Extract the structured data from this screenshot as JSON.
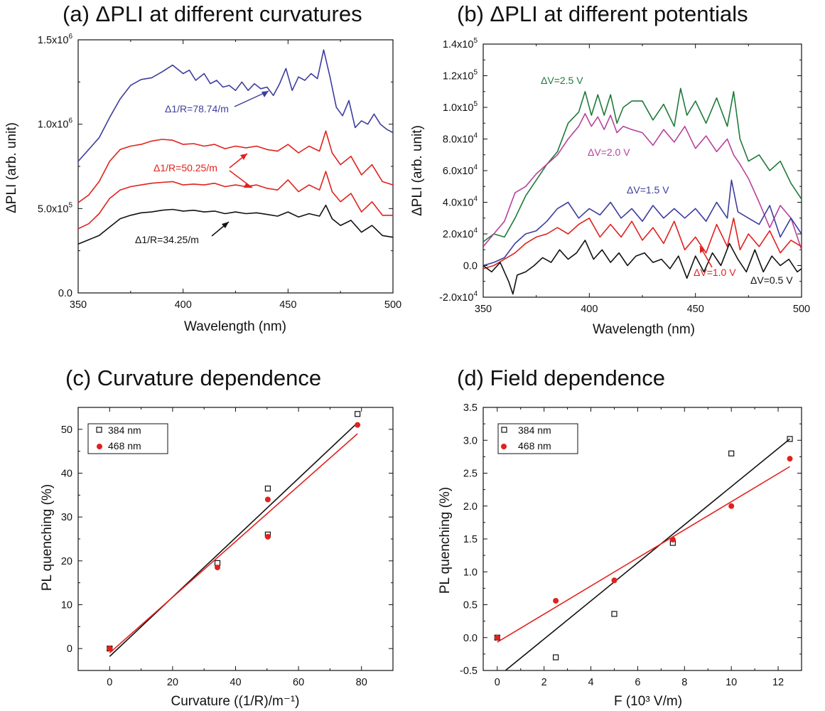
{
  "chart_data": [
    {
      "id": "a",
      "type": "line",
      "title": "(a) ΔPLI at different curvatures",
      "xlabel": "Wavelength (nm)",
      "ylabel": "ΔPLI (arb. unit)",
      "xlim": [
        350,
        500
      ],
      "ylim": [
        0,
        1500000
      ],
      "xticks": [
        350,
        400,
        450,
        500
      ],
      "yticks": [
        0,
        500000,
        1000000,
        1500000
      ],
      "ytick_labels": [
        {
          "mant": "0.0",
          "exp": ""
        },
        {
          "mant": "5.0x10",
          "exp": "5"
        },
        {
          "mant": "1.0x10",
          "exp": "6"
        },
        {
          "mant": "1.5x10",
          "exp": "6"
        }
      ],
      "series": [
        {
          "name": "Δ1/R=78.74/m",
          "color": "#3d3d9e",
          "x": [
            350,
            355,
            360,
            365,
            370,
            375,
            380,
            385,
            390,
            395,
            400,
            403,
            406,
            410,
            413,
            416,
            419,
            422,
            425,
            428,
            431,
            434,
            437,
            440,
            443,
            446,
            449,
            452,
            455,
            458,
            461,
            464,
            467,
            470,
            473,
            476,
            479,
            482,
            485,
            488,
            491,
            494,
            497,
            500
          ],
          "y": [
            780000,
            850000,
            920000,
            1040000,
            1150000,
            1230000,
            1265000,
            1275000,
            1310000,
            1350000,
            1300000,
            1320000,
            1260000,
            1300000,
            1240000,
            1260000,
            1220000,
            1230000,
            1200000,
            1250000,
            1200000,
            1240000,
            1210000,
            1220000,
            1170000,
            1240000,
            1330000,
            1200000,
            1280000,
            1260000,
            1300000,
            1270000,
            1440000,
            1280000,
            1100000,
            1050000,
            1140000,
            980000,
            1020000,
            1000000,
            1060000,
            1000000,
            970000,
            950000
          ]
        },
        {
          "name": "Δ1/R=50.25/m",
          "color": "#e0221e",
          "x": [
            350,
            355,
            360,
            365,
            370,
            375,
            380,
            385,
            390,
            395,
            400,
            405,
            410,
            415,
            420,
            425,
            430,
            435,
            440,
            445,
            450,
            455,
            460,
            465,
            468,
            471,
            475,
            480,
            485,
            490,
            495,
            500
          ],
          "y": [
            535000,
            580000,
            660000,
            780000,
            850000,
            870000,
            880000,
            900000,
            910000,
            905000,
            880000,
            885000,
            870000,
            880000,
            855000,
            870000,
            860000,
            870000,
            850000,
            840000,
            880000,
            830000,
            870000,
            840000,
            960000,
            830000,
            760000,
            810000,
            700000,
            760000,
            660000,
            640000
          ]
        },
        {
          "name": "Δ1/R=50.25/m",
          "color": "#e0221e",
          "x": [
            350,
            355,
            360,
            365,
            370,
            375,
            380,
            385,
            390,
            395,
            400,
            405,
            410,
            415,
            420,
            425,
            430,
            435,
            440,
            445,
            450,
            455,
            460,
            465,
            468,
            471,
            475,
            480,
            485,
            490,
            495,
            500
          ],
          "y": [
            380000,
            410000,
            470000,
            560000,
            610000,
            630000,
            640000,
            650000,
            655000,
            660000,
            640000,
            645000,
            640000,
            650000,
            630000,
            640000,
            630000,
            640000,
            620000,
            610000,
            670000,
            600000,
            640000,
            610000,
            720000,
            600000,
            540000,
            590000,
            480000,
            540000,
            460000,
            460000
          ]
        },
        {
          "name": "Δ1/R=34.25/m",
          "color": "#111111",
          "x": [
            350,
            355,
            360,
            365,
            370,
            375,
            380,
            385,
            390,
            395,
            400,
            405,
            410,
            415,
            420,
            425,
            430,
            435,
            440,
            445,
            450,
            455,
            460,
            465,
            468,
            471,
            475,
            480,
            485,
            490,
            495,
            500
          ],
          "y": [
            290000,
            315000,
            340000,
            390000,
            440000,
            460000,
            475000,
            480000,
            490000,
            495000,
            485000,
            490000,
            480000,
            485000,
            470000,
            480000,
            470000,
            475000,
            465000,
            455000,
            480000,
            450000,
            470000,
            455000,
            520000,
            440000,
            400000,
            430000,
            360000,
            400000,
            340000,
            330000
          ]
        }
      ],
      "annotations": [
        {
          "text": "Δ1/R=78.74/m",
          "color": "#3d3d9e"
        },
        {
          "text": "Δ1/R=50.25/m",
          "color": "#e0221e"
        },
        {
          "text": "Δ1/R=34.25/m",
          "color": "#111111"
        }
      ]
    },
    {
      "id": "b",
      "type": "line",
      "title": "(b) ΔPLI at different potentials",
      "xlabel": "Wavelength (nm)",
      "ylabel": "ΔPLI (arb. unit)",
      "xlim": [
        350,
        500
      ],
      "ylim": [
        -20000,
        140000
      ],
      "xticks": [
        350,
        400,
        450,
        500
      ],
      "yticks": [
        -20000,
        0,
        20000,
        40000,
        60000,
        80000,
        100000,
        120000,
        140000
      ],
      "ytick_labels": [
        {
          "mant": "-2.0x10",
          "exp": "4"
        },
        {
          "mant": "0.0",
          "exp": ""
        },
        {
          "mant": "2.0x10",
          "exp": "4"
        },
        {
          "mant": "4.0x10",
          "exp": "4"
        },
        {
          "mant": "6.0x10",
          "exp": "4"
        },
        {
          "mant": "8.0x10",
          "exp": "4"
        },
        {
          "mant": "1.0x10",
          "exp": "5"
        },
        {
          "mant": "1.2x10",
          "exp": "5"
        },
        {
          "mant": "1.4x10",
          "exp": "5"
        }
      ],
      "series": [
        {
          "name": "ΔV=2.5 V",
          "color": "#1f7a3a",
          "x": [
            350,
            355,
            360,
            365,
            370,
            375,
            380,
            385,
            390,
            395,
            398,
            401,
            404,
            407,
            410,
            413,
            416,
            420,
            425,
            430,
            435,
            440,
            443,
            446,
            450,
            455,
            460,
            465,
            468,
            471,
            475,
            480,
            485,
            490,
            495,
            500
          ],
          "y": [
            15000,
            20000,
            18000,
            30000,
            44000,
            54000,
            64000,
            72000,
            90000,
            97000,
            110000,
            95000,
            108000,
            95000,
            108000,
            90000,
            100000,
            104000,
            104000,
            92000,
            102000,
            88000,
            112000,
            95000,
            104000,
            90000,
            106000,
            88000,
            110000,
            80000,
            66000,
            70000,
            60000,
            66000,
            52000,
            42000
          ]
        },
        {
          "name": "ΔV=2.0 V",
          "color": "#b8429a",
          "x": [
            350,
            355,
            360,
            365,
            370,
            375,
            380,
            385,
            390,
            395,
            398,
            401,
            404,
            407,
            410,
            413,
            416,
            420,
            425,
            430,
            435,
            440,
            445,
            450,
            455,
            460,
            465,
            468,
            471,
            475,
            480,
            485,
            490,
            495,
            500
          ],
          "y": [
            12000,
            20000,
            28000,
            46000,
            50000,
            58000,
            64000,
            70000,
            80000,
            88000,
            96000,
            88000,
            94000,
            86000,
            95000,
            84000,
            88000,
            86000,
            84000,
            76000,
            86000,
            78000,
            88000,
            74000,
            82000,
            72000,
            80000,
            70000,
            64000,
            55000,
            40000,
            24000,
            38000,
            30000,
            10000
          ]
        },
        {
          "name": "ΔV=1.5 V",
          "color": "#3d3d9e",
          "x": [
            350,
            355,
            360,
            365,
            370,
            375,
            380,
            385,
            390,
            395,
            400,
            405,
            410,
            415,
            420,
            425,
            430,
            435,
            440,
            445,
            450,
            455,
            460,
            465,
            467,
            470,
            475,
            480,
            485,
            490,
            495,
            500
          ],
          "y": [
            0,
            2000,
            5000,
            14000,
            20000,
            22000,
            28000,
            36000,
            40000,
            30000,
            36000,
            32000,
            40000,
            30000,
            36000,
            28000,
            38000,
            30000,
            36000,
            30000,
            36000,
            28000,
            40000,
            30000,
            54000,
            34000,
            30000,
            26000,
            38000,
            18000,
            30000,
            20000
          ]
        },
        {
          "name": "ΔV=1.0 V",
          "color": "#e0221e",
          "x": [
            350,
            355,
            360,
            365,
            370,
            375,
            380,
            385,
            390,
            395,
            400,
            405,
            410,
            415,
            420,
            425,
            430,
            435,
            440,
            445,
            450,
            455,
            460,
            465,
            468,
            471,
            475,
            480,
            485,
            490,
            495,
            500
          ],
          "y": [
            -2000,
            0,
            4000,
            8000,
            14000,
            18000,
            20000,
            24000,
            20000,
            26000,
            30000,
            18000,
            26000,
            18000,
            28000,
            16000,
            24000,
            14000,
            28000,
            10000,
            18000,
            8000,
            26000,
            12000,
            30000,
            10000,
            20000,
            12000,
            22000,
            8000,
            16000,
            12000
          ]
        },
        {
          "name": "ΔV=0.5 V",
          "color": "#111111",
          "x": [
            350,
            354,
            358,
            362,
            364,
            366,
            370,
            374,
            378,
            382,
            386,
            390,
            394,
            398,
            402,
            406,
            410,
            414,
            418,
            422,
            426,
            430,
            434,
            438,
            442,
            446,
            450,
            454,
            458,
            462,
            466,
            470,
            474,
            478,
            482,
            486,
            490,
            494,
            498,
            500
          ],
          "y": [
            0,
            -4000,
            2000,
            -10000,
            -18000,
            -6000,
            -4000,
            0,
            5000,
            2000,
            10000,
            4000,
            8000,
            16000,
            4000,
            10000,
            2000,
            8000,
            0,
            6000,
            8000,
            2000,
            4000,
            -2000,
            6000,
            -8000,
            6000,
            -4000,
            8000,
            0,
            14000,
            4000,
            -4000,
            10000,
            -4000,
            6000,
            0,
            4000,
            -4000,
            -2000
          ]
        }
      ],
      "annotations": [
        {
          "text": "ΔV=2.5 V",
          "color": "#1f7a3a"
        },
        {
          "text": "ΔV=2.0 V",
          "color": "#b8429a"
        },
        {
          "text": "ΔV=1.5 V",
          "color": "#3d3d9e"
        },
        {
          "text": "ΔV=1.0 V",
          "color": "#e0221e"
        },
        {
          "text": "ΔV=0.5 V",
          "color": "#111111"
        }
      ]
    },
    {
      "id": "c",
      "type": "scatter",
      "title": "(c) Curvature dependence",
      "xlabel": "Curvature ((1/R)/m⁻¹)",
      "ylabel": "PL quenching (%)",
      "xlim": [
        -10,
        90
      ],
      "ylim": [
        -5,
        55
      ],
      "xticks": [
        0,
        20,
        40,
        60,
        80
      ],
      "yticks": [
        0,
        10,
        20,
        30,
        40,
        50
      ],
      "series": [
        {
          "name": "384 nm",
          "marker": "square-open",
          "color": "#111111",
          "x": [
            0,
            34.25,
            50.25,
            50.25,
            78.74
          ],
          "y": [
            0,
            19.5,
            36.5,
            26,
            53.5
          ],
          "fit": {
            "x": [
              0,
              78.74
            ],
            "y": [
              -1.8,
              51.5
            ]
          }
        },
        {
          "name": "468 nm",
          "marker": "circle-filled",
          "color": "#e0221e",
          "x": [
            0,
            34.25,
            50.25,
            50.25,
            78.74
          ],
          "y": [
            0,
            18.5,
            34,
            25.5,
            51
          ],
          "fit": {
            "x": [
              0,
              78.74
            ],
            "y": [
              -1.0,
              49
            ]
          }
        }
      ],
      "legend": [
        "384 nm",
        "468 nm"
      ]
    },
    {
      "id": "d",
      "type": "scatter",
      "title": "(d) Field dependence",
      "xlabel": "F (10³ V/m)",
      "ylabel": "PL quenching (%)",
      "xlim": [
        -0.6,
        13
      ],
      "ylim": [
        -0.5,
        3.5
      ],
      "xticks": [
        0,
        2,
        4,
        6,
        8,
        10,
        12
      ],
      "yticks": [
        -0.5,
        0.0,
        0.5,
        1.0,
        1.5,
        2.0,
        2.5,
        3.0,
        3.5
      ],
      "series": [
        {
          "name": "384 nm",
          "marker": "square-open",
          "color": "#111111",
          "x": [
            0,
            2.5,
            5,
            7.5,
            10,
            12.5
          ],
          "y": [
            0,
            -0.3,
            0.36,
            1.44,
            2.8,
            3.02
          ],
          "fit": {
            "x": [
              0.35,
              12.5
            ],
            "y": [
              -0.5,
              3.02
            ]
          }
        },
        {
          "name": "468 nm",
          "marker": "circle-filled",
          "color": "#e0221e",
          "x": [
            0,
            2.5,
            5,
            7.5,
            10,
            12.5
          ],
          "y": [
            0,
            0.56,
            0.87,
            1.49,
            2.0,
            2.72
          ],
          "fit": {
            "x": [
              0,
              12.5
            ],
            "y": [
              -0.07,
              2.6
            ]
          }
        }
      ],
      "legend": [
        "384 nm",
        "468 nm"
      ]
    }
  ]
}
